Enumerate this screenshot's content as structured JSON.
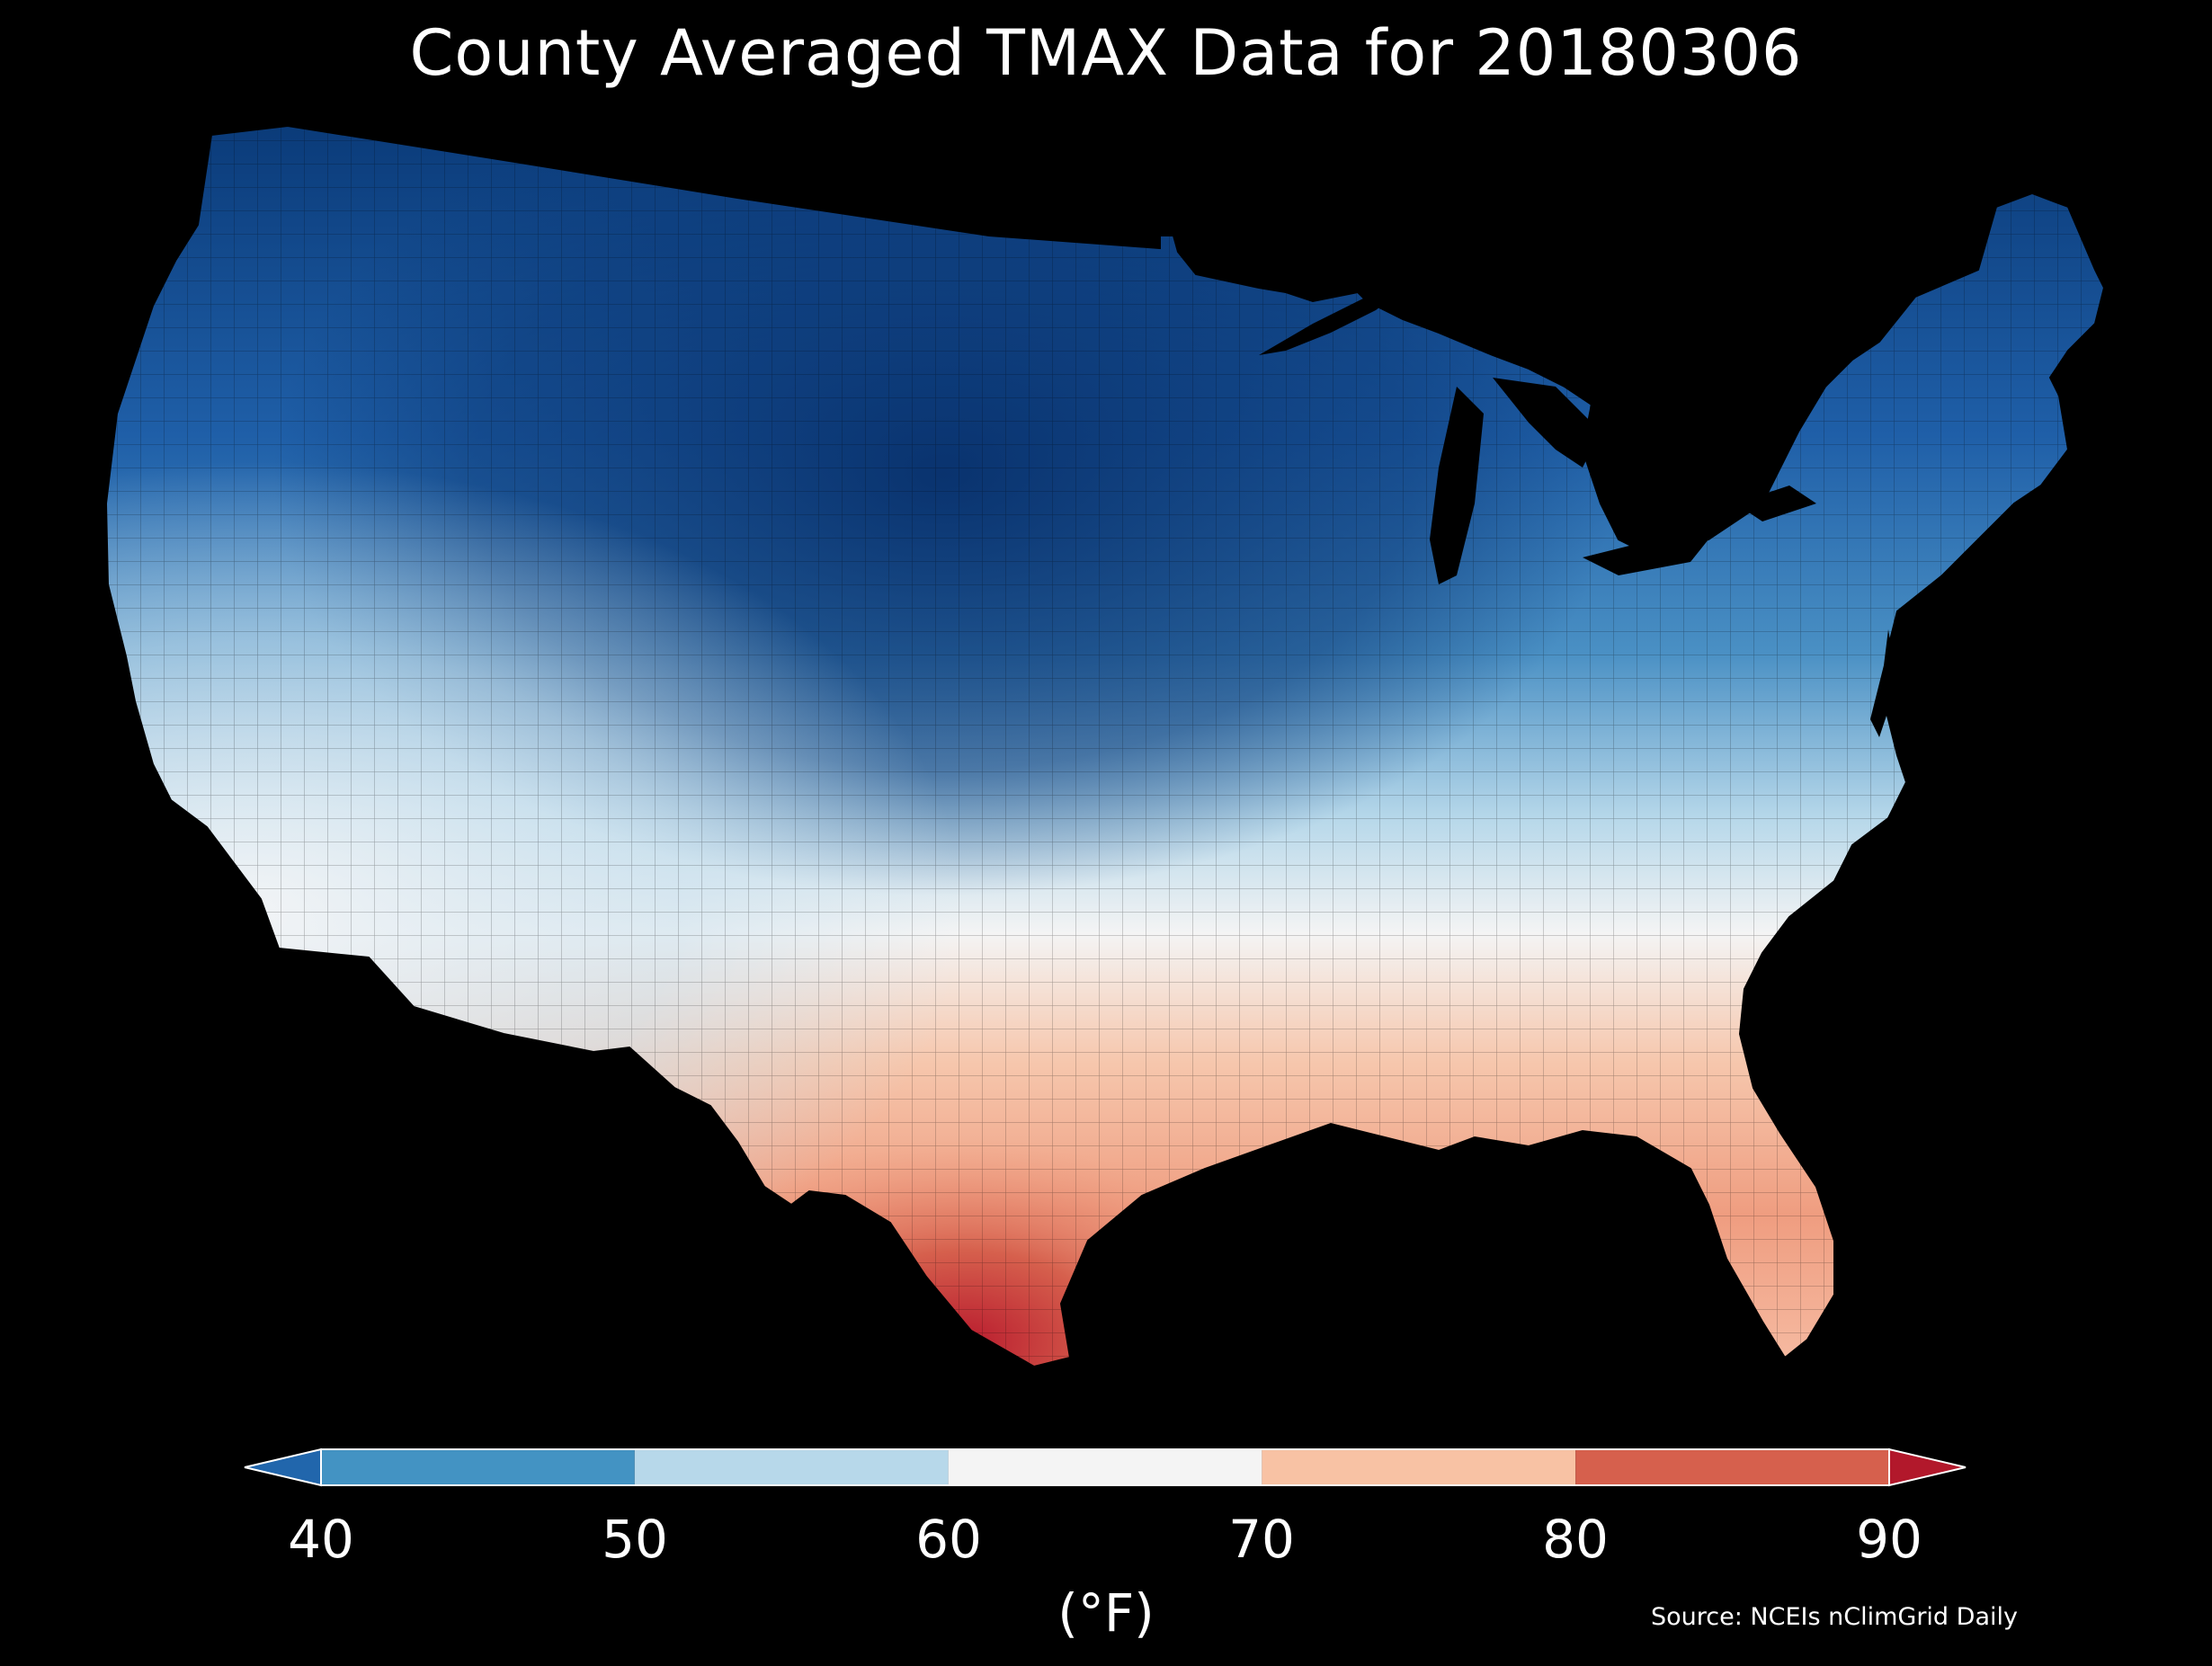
{
  "title": "County Averaged TMAX Data for 20180306",
  "colorbar": {
    "ticks": [
      "40",
      "50",
      "60",
      "70",
      "80",
      "90"
    ],
    "unit": "(°F)",
    "bins": [
      {
        "range": "<40",
        "color": "#2166ac"
      },
      {
        "range": "40-50",
        "color": "#4393c3"
      },
      {
        "range": "50-60",
        "color": "#b7d8ea"
      },
      {
        "range": "60-70",
        "color": "#f4f4f4"
      },
      {
        "range": "70-80",
        "color": "#f8c2a4"
      },
      {
        "range": "80-90",
        "color": "#d6604d"
      },
      {
        "range": ">90",
        "color": "#b2182b"
      }
    ]
  },
  "source": "Source: NCEIs nClimGrid Daily",
  "map_colors": {
    "background": "#000000",
    "coldest": "#08306b",
    "cold": "#2166ac",
    "cool": "#4393c3",
    "mild": "#b7d8ea",
    "neutral": "#f4f4f4",
    "warm": "#f8c2a4",
    "hot": "#d6604d",
    "hottest": "#b2182b"
  }
}
